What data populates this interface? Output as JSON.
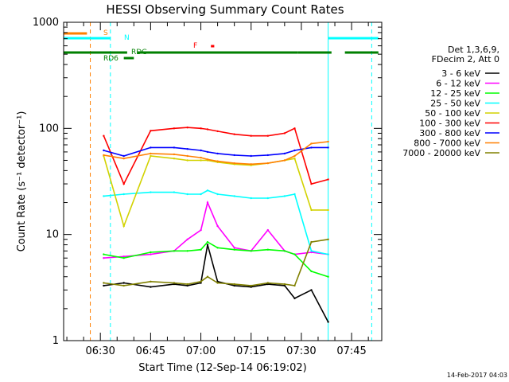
{
  "chart_data": {
    "type": "line",
    "title": "HESSI Observing Summary Count Rates",
    "ylabel": "Count Rate (s⁻¹ detector⁻¹)",
    "xlabel": "Start Time (12-Sep-14 06:19:02)",
    "footer": "14-Feb-2017 04:03",
    "yscale": "log",
    "ylim": [
      1,
      1000
    ],
    "xlim": [
      "06:19:02",
      "07:54:00"
    ],
    "y_ticks": [
      "1",
      "10",
      "100",
      "1000"
    ],
    "x_ticks": [
      "06:30",
      "06:45",
      "07:00",
      "07:15",
      "07:30",
      "07:45"
    ],
    "legend_header": [
      "Det 1,3,6,9,",
      "FDecim 2, Att 0"
    ],
    "legend_position": "right",
    "series": [
      {
        "name": "3 - 6 keV",
        "color": "#000000",
        "x": [
          "06:31",
          "06:37",
          "06:45",
          "06:52",
          "06:56",
          "07:00",
          "07:02",
          "07:05",
          "07:10",
          "07:15",
          "07:20",
          "07:25",
          "07:28",
          "07:33",
          "07:38"
        ],
        "values": [
          3.3,
          3.5,
          3.2,
          3.4,
          3.3,
          3.5,
          8.0,
          3.6,
          3.3,
          3.2,
          3.4,
          3.3,
          2.5,
          3.0,
          1.5
        ]
      },
      {
        "name": "6 - 12 keV",
        "color": "#ff00ff",
        "x": [
          "06:31",
          "06:37",
          "06:45",
          "06:52",
          "06:56",
          "07:00",
          "07:02",
          "07:05",
          "07:10",
          "07:15",
          "07:20",
          "07:25",
          "07:28",
          "07:33",
          "07:38"
        ],
        "values": [
          6.0,
          6.2,
          6.5,
          7.0,
          9.0,
          11.0,
          20.0,
          12.0,
          7.5,
          7.0,
          11.0,
          7.0,
          6.5,
          6.8,
          6.5
        ]
      },
      {
        "name": "12 - 25 keV",
        "color": "#00ff00",
        "x": [
          "06:31",
          "06:37",
          "06:45",
          "06:52",
          "06:56",
          "07:00",
          "07:02",
          "07:05",
          "07:10",
          "07:15",
          "07:20",
          "07:25",
          "07:28",
          "07:33",
          "07:38"
        ],
        "values": [
          6.5,
          6.0,
          6.8,
          7.0,
          7.0,
          7.2,
          8.5,
          7.5,
          7.2,
          7.0,
          7.2,
          7.0,
          6.5,
          4.5,
          4.0
        ]
      },
      {
        "name": "25 - 50 keV",
        "color": "#00ffff",
        "x": [
          "06:31",
          "06:37",
          "06:45",
          "06:52",
          "06:56",
          "07:00",
          "07:02",
          "07:05",
          "07:10",
          "07:15",
          "07:20",
          "07:25",
          "07:28",
          "07:33",
          "07:38"
        ],
        "values": [
          23,
          24,
          25,
          25,
          24,
          24,
          26,
          24,
          23,
          22,
          22,
          23,
          24,
          7.0,
          6.5
        ]
      },
      {
        "name": "50 - 100 keV",
        "color": "#d2d200",
        "x": [
          "06:31",
          "06:37",
          "06:45",
          "06:52",
          "06:56",
          "07:00",
          "07:02",
          "07:05",
          "07:10",
          "07:15",
          "07:20",
          "07:25",
          "07:28",
          "07:33",
          "07:38"
        ],
        "values": [
          55,
          12,
          55,
          52,
          50,
          50,
          50,
          48,
          46,
          45,
          47,
          50,
          52,
          17,
          17
        ]
      },
      {
        "name": "100 - 300 keV",
        "color": "#ff0000",
        "x": [
          "06:31",
          "06:37",
          "06:45",
          "06:52",
          "06:56",
          "07:00",
          "07:02",
          "07:05",
          "07:10",
          "07:15",
          "07:20",
          "07:25",
          "07:28",
          "07:33",
          "07:38"
        ],
        "values": [
          85,
          30,
          95,
          100,
          102,
          100,
          98,
          94,
          88,
          85,
          85,
          90,
          100,
          30,
          33
        ]
      },
      {
        "name": "300 - 800 keV",
        "color": "#0000ff",
        "x": [
          "06:31",
          "06:37",
          "06:45",
          "06:52",
          "06:56",
          "07:00",
          "07:02",
          "07:05",
          "07:10",
          "07:15",
          "07:20",
          "07:25",
          "07:28",
          "07:33",
          "07:38"
        ],
        "values": [
          62,
          55,
          66,
          66,
          64,
          62,
          60,
          58,
          56,
          55,
          56,
          58,
          62,
          66,
          66
        ]
      },
      {
        "name": "800 - 7000 keV",
        "color": "#ff8000",
        "x": [
          "06:31",
          "06:37",
          "06:45",
          "06:52",
          "06:56",
          "07:00",
          "07:02",
          "07:05",
          "07:10",
          "07:15",
          "07:20",
          "07:25",
          "07:28",
          "07:33",
          "07:38"
        ],
        "values": [
          56,
          52,
          58,
          57,
          55,
          53,
          51,
          49,
          47,
          46,
          47,
          50,
          55,
          72,
          75
        ]
      },
      {
        "name": "7000 - 20000 keV",
        "color": "#808000",
        "x": [
          "06:31",
          "06:37",
          "06:45",
          "06:52",
          "06:56",
          "07:00",
          "07:02",
          "07:05",
          "07:10",
          "07:15",
          "07:20",
          "07:25",
          "07:28",
          "07:33",
          "07:38"
        ],
        "values": [
          3.5,
          3.3,
          3.6,
          3.5,
          3.4,
          3.6,
          4.0,
          3.5,
          3.4,
          3.3,
          3.5,
          3.4,
          3.3,
          8.5,
          9.0
        ]
      }
    ],
    "flag_bars": [
      {
        "label": "S",
        "color": "#ff8000",
        "segments": [
          [
            "06:19",
            "06:26"
          ]
        ]
      },
      {
        "label": "N",
        "color": "#00ffff",
        "segments": [
          [
            "06:19",
            "06:33"
          ],
          [
            "07:38",
            "07:53"
          ]
        ]
      },
      {
        "label": "RD6",
        "color": "#008000",
        "segments": [
          [
            "06:19",
            "06:38"
          ],
          [
            "06:41",
            "07:29"
          ],
          [
            "07:29",
            "07:39"
          ],
          [
            "07:43",
            "07:53"
          ]
        ]
      },
      {
        "label": "RDG",
        "color": "#008000",
        "segments": [
          [
            "06:37",
            "06:40"
          ]
        ]
      },
      {
        "label": "F",
        "color": "#ff0000",
        "segments": [
          [
            "07:03",
            "07:04"
          ]
        ]
      }
    ],
    "vertical_markers": [
      {
        "x": "06:19",
        "color": "#00ffff",
        "style": "solid"
      },
      {
        "x": "06:27",
        "color": "#ff8000",
        "style": "dashed"
      },
      {
        "x": "06:33",
        "color": "#00ffff",
        "style": "dashed"
      },
      {
        "x": "07:38",
        "color": "#00ffff",
        "style": "solid"
      },
      {
        "x": "07:51",
        "color": "#00ffff",
        "style": "dashed"
      }
    ]
  }
}
